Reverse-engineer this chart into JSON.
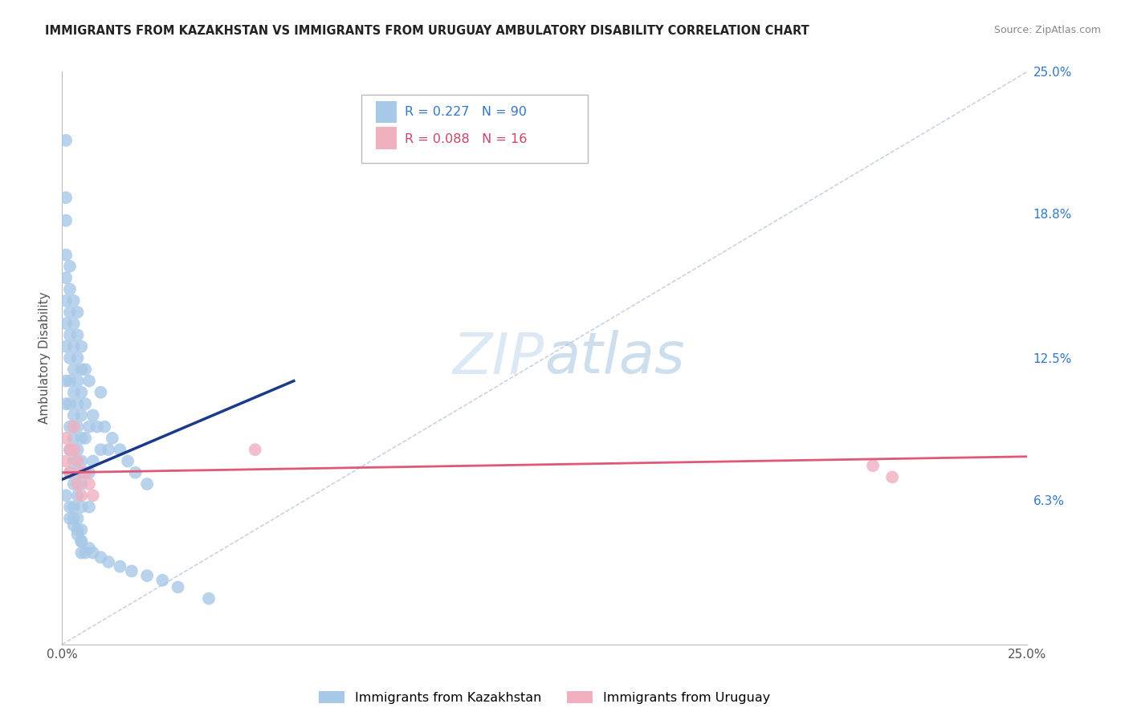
{
  "title": "IMMIGRANTS FROM KAZAKHSTAN VS IMMIGRANTS FROM URUGUAY AMBULATORY DISABILITY CORRELATION CHART",
  "source": "Source: ZipAtlas.com",
  "ylabel": "Ambulatory Disability",
  "legend_label_1": "Immigrants from Kazakhstan",
  "legend_label_2": "Immigrants from Uruguay",
  "r1": 0.227,
  "n1": 90,
  "r2": 0.088,
  "n2": 16,
  "color_kaz": "#a8c8e8",
  "color_uru": "#f0b0c0",
  "color_kaz_line": "#1a3a8a",
  "color_uru_line": "#e05878",
  "xlim": [
    0,
    0.25
  ],
  "ylim": [
    0,
    0.25
  ],
  "ytick_right": [
    0.0,
    0.063,
    0.125,
    0.188,
    0.25
  ],
  "ytick_right_labels": [
    "",
    "6.3%",
    "12.5%",
    "18.8%",
    "25.0%"
  ],
  "background_color": "#ffffff",
  "grid_color": "#e0e0e0",
  "diagonal_color": "#a0b8d8",
  "kaz_x": [
    0.001,
    0.001,
    0.001,
    0.001,
    0.001,
    0.001,
    0.001,
    0.001,
    0.001,
    0.001,
    0.002,
    0.002,
    0.002,
    0.002,
    0.002,
    0.002,
    0.002,
    0.002,
    0.002,
    0.002,
    0.003,
    0.003,
    0.003,
    0.003,
    0.003,
    0.003,
    0.003,
    0.003,
    0.003,
    0.003,
    0.004,
    0.004,
    0.004,
    0.004,
    0.004,
    0.004,
    0.004,
    0.004,
    0.004,
    0.004,
    0.005,
    0.005,
    0.005,
    0.005,
    0.005,
    0.005,
    0.005,
    0.005,
    0.005,
    0.005,
    0.006,
    0.006,
    0.006,
    0.006,
    0.007,
    0.007,
    0.007,
    0.007,
    0.008,
    0.008,
    0.009,
    0.01,
    0.01,
    0.011,
    0.012,
    0.013,
    0.015,
    0.017,
    0.019,
    0.022,
    0.001,
    0.002,
    0.002,
    0.003,
    0.003,
    0.004,
    0.004,
    0.005,
    0.005,
    0.006,
    0.007,
    0.008,
    0.01,
    0.012,
    0.015,
    0.018,
    0.022,
    0.026,
    0.03,
    0.038
  ],
  "kaz_y": [
    0.22,
    0.195,
    0.185,
    0.17,
    0.16,
    0.15,
    0.14,
    0.13,
    0.115,
    0.105,
    0.165,
    0.155,
    0.145,
    0.135,
    0.125,
    0.115,
    0.105,
    0.095,
    0.085,
    0.075,
    0.15,
    0.14,
    0.13,
    0.12,
    0.11,
    0.1,
    0.09,
    0.08,
    0.07,
    0.06,
    0.145,
    0.135,
    0.125,
    0.115,
    0.105,
    0.095,
    0.085,
    0.075,
    0.065,
    0.055,
    0.13,
    0.12,
    0.11,
    0.1,
    0.09,
    0.08,
    0.07,
    0.06,
    0.05,
    0.04,
    0.12,
    0.105,
    0.09,
    0.075,
    0.115,
    0.095,
    0.075,
    0.06,
    0.1,
    0.08,
    0.095,
    0.11,
    0.085,
    0.095,
    0.085,
    0.09,
    0.085,
    0.08,
    0.075,
    0.07,
    0.065,
    0.06,
    0.055,
    0.055,
    0.052,
    0.05,
    0.048,
    0.045,
    0.045,
    0.04,
    0.042,
    0.04,
    0.038,
    0.036,
    0.034,
    0.032,
    0.03,
    0.028,
    0.025,
    0.02
  ],
  "uru_x": [
    0.001,
    0.001,
    0.002,
    0.002,
    0.003,
    0.003,
    0.004,
    0.004,
    0.005,
    0.005,
    0.006,
    0.007,
    0.008,
    0.05,
    0.21,
    0.215
  ],
  "uru_y": [
    0.09,
    0.08,
    0.085,
    0.075,
    0.095,
    0.085,
    0.08,
    0.07,
    0.075,
    0.065,
    0.075,
    0.07,
    0.065,
    0.085,
    0.078,
    0.073
  ],
  "kaz_line_x": [
    0.0,
    0.06
  ],
  "kaz_line_y": [
    0.072,
    0.115
  ],
  "uru_line_x": [
    0.0,
    0.25
  ],
  "uru_line_y": [
    0.075,
    0.082
  ]
}
